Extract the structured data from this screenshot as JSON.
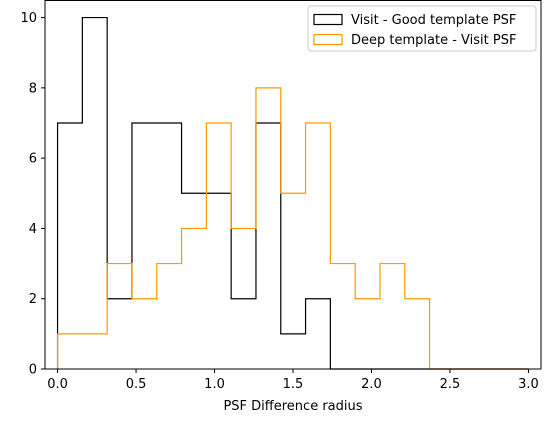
{
  "chart_data": {
    "type": "histogram",
    "xlabel": "PSF Difference radius",
    "ylabel": "",
    "xlim": [
      -0.08,
      3.08
    ],
    "ylim": [
      0,
      10.5
    ],
    "x_ticks": [
      0.0,
      0.5,
      1.0,
      1.5,
      2.0,
      2.5,
      3.0
    ],
    "x_tick_labels": [
      "0.0",
      "0.5",
      "1.0",
      "1.5",
      "2.0",
      "2.5",
      "3.0"
    ],
    "y_ticks": [
      0,
      2,
      4,
      6,
      8,
      10
    ],
    "y_tick_labels": [
      "0",
      "2",
      "4",
      "6",
      "8",
      "10"
    ],
    "grid": false,
    "legend_placement": "top-right",
    "series": [
      {
        "name": "Visit - Good template PSF",
        "color": "#000000",
        "bin_edges": [
          0.0,
          0.158,
          0.316,
          0.474,
          0.632,
          0.79,
          0.948,
          1.106,
          1.264,
          1.422,
          1.58,
          1.738,
          1.896,
          2.054,
          2.212,
          2.37,
          2.528,
          2.686,
          2.844,
          3.0
        ],
        "counts": [
          7,
          10,
          2,
          7,
          7,
          5,
          5,
          2,
          7,
          1,
          2,
          0,
          0,
          0,
          0,
          0,
          0,
          0,
          0
        ]
      },
      {
        "name": "Deep template - Visit PSF",
        "color": "#ff9900",
        "bin_edges": [
          0.0,
          0.158,
          0.316,
          0.474,
          0.632,
          0.79,
          0.948,
          1.106,
          1.264,
          1.422,
          1.58,
          1.738,
          1.896,
          2.054,
          2.212,
          2.37,
          2.528,
          2.686,
          2.844,
          3.0
        ],
        "counts": [
          1,
          1,
          3,
          2,
          3,
          4,
          7,
          4,
          8,
          5,
          7,
          3,
          2,
          3,
          2,
          0,
          0,
          0,
          0
        ]
      }
    ]
  }
}
